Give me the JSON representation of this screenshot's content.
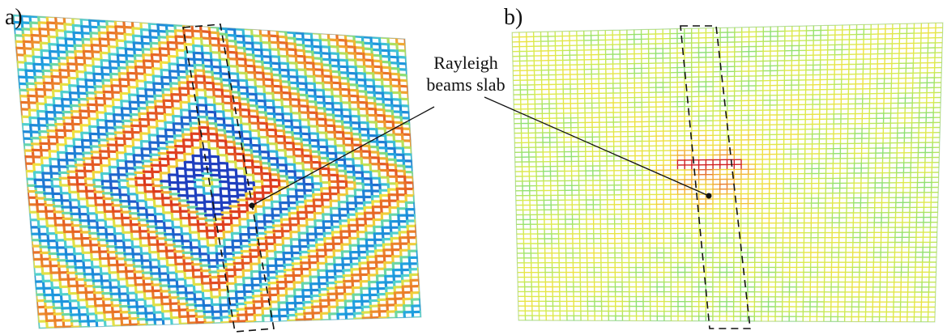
{
  "figure": {
    "panels": [
      {
        "label": "a)",
        "description_colors": [
          "#1f3fbf",
          "#1ea0e0",
          "#4fd0d0",
          "#8fe070",
          "#f0e040",
          "#f0a030",
          "#e04020",
          "#c01818"
        ]
      },
      {
        "label": "b)",
        "description_colors": [
          "#4fd0d0",
          "#8fe070",
          "#d8ec50",
          "#f0e040",
          "#f0a030",
          "#d02020"
        ]
      }
    ],
    "annotation": {
      "line1": "Rayleigh",
      "line2": "beams slab"
    }
  }
}
